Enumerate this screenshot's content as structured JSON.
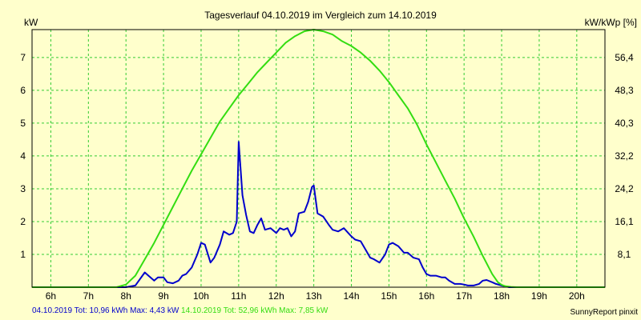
{
  "chart_data": {
    "type": "line",
    "title": "Tagesverlauf 04.10.2019 im Vergleich zum 14.10.2019",
    "ylabel_left": "kW",
    "ylabel_right": "kW/kWp [%]",
    "ylim": [
      0,
      7.85
    ],
    "xlim": [
      5.5,
      20.75
    ],
    "x_ticks": [
      6,
      7,
      8,
      9,
      10,
      11,
      12,
      13,
      14,
      15,
      16,
      17,
      18,
      19,
      20
    ],
    "x_tick_labels": [
      "6h",
      "7h",
      "8h",
      "9h",
      "10h",
      "11h",
      "12h",
      "13h",
      "14h",
      "15h",
      "16h",
      "17h",
      "18h",
      "19h",
      "20h"
    ],
    "y_ticks_left": [
      1,
      2,
      3,
      4,
      5,
      6,
      7
    ],
    "y_ticks_right": [
      1,
      2,
      3,
      4,
      5,
      6,
      7
    ],
    "y_tick_labels_right": [
      "8,1",
      "16,1",
      "24,2",
      "32,2",
      "40,3",
      "48,3",
      "56,4"
    ],
    "grid": true,
    "series": [
      {
        "name": "04.10.2019",
        "color": "#0000cc",
        "x": [
          5.5,
          6,
          7,
          7.5,
          8,
          8.25,
          8.5,
          8.6,
          8.75,
          8.85,
          9,
          9.1,
          9.25,
          9.4,
          9.5,
          9.6,
          9.75,
          9.9,
          10,
          10.1,
          10.25,
          10.35,
          10.5,
          10.6,
          10.75,
          10.85,
          10.95,
          11,
          11.1,
          11.2,
          11.3,
          11.4,
          11.5,
          11.6,
          11.7,
          11.85,
          12,
          12.1,
          12.2,
          12.3,
          12.4,
          12.5,
          12.6,
          12.75,
          12.85,
          12.95,
          13,
          13.1,
          13.25,
          13.4,
          13.5,
          13.65,
          13.8,
          14,
          14.1,
          14.25,
          14.4,
          14.5,
          14.6,
          14.75,
          14.9,
          15,
          15.1,
          15.25,
          15.4,
          15.5,
          15.65,
          15.8,
          15.9,
          16,
          16.1,
          16.25,
          16.4,
          16.5,
          16.6,
          16.75,
          16.9,
          17,
          17.1,
          17.25,
          17.4,
          17.5,
          17.6,
          17.75,
          17.85,
          18,
          18.2,
          18.5,
          19,
          20,
          20.75
        ],
        "y": [
          0,
          0,
          0,
          0,
          0,
          0.05,
          0.45,
          0.35,
          0.2,
          0.3,
          0.3,
          0.15,
          0.12,
          0.2,
          0.35,
          0.4,
          0.6,
          1.0,
          1.35,
          1.3,
          0.75,
          0.9,
          1.3,
          1.7,
          1.6,
          1.65,
          2.0,
          4.43,
          2.8,
          2.2,
          1.7,
          1.65,
          1.9,
          2.1,
          1.75,
          1.8,
          1.65,
          1.8,
          1.75,
          1.8,
          1.55,
          1.7,
          2.25,
          2.3,
          2.6,
          3.05,
          3.1,
          2.25,
          2.15,
          1.9,
          1.75,
          1.7,
          1.8,
          1.55,
          1.45,
          1.4,
          1.1,
          0.9,
          0.85,
          0.75,
          1.0,
          1.3,
          1.35,
          1.25,
          1.05,
          1.05,
          0.9,
          0.85,
          0.6,
          0.4,
          0.35,
          0.35,
          0.3,
          0.3,
          0.2,
          0.1,
          0.1,
          0.08,
          0.05,
          0.05,
          0.1,
          0.2,
          0.22,
          0.15,
          0.1,
          0.05,
          0,
          0,
          0,
          0,
          0
        ]
      },
      {
        "name": "14.10.2019",
        "color": "#33dd11",
        "x": [
          5.5,
          6,
          7,
          7.75,
          8,
          8.25,
          8.5,
          8.75,
          9,
          9.25,
          9.5,
          9.75,
          10,
          10.25,
          10.5,
          10.75,
          11,
          11.25,
          11.5,
          11.75,
          12,
          12.25,
          12.5,
          12.75,
          13,
          13.25,
          13.5,
          13.75,
          14,
          14.25,
          14.5,
          14.75,
          15,
          15.25,
          15.5,
          15.75,
          16,
          16.25,
          16.5,
          16.75,
          17,
          17.25,
          17.5,
          17.75,
          17.9,
          18,
          18.1,
          18.25,
          18.4,
          18.5,
          19,
          20,
          20.75
        ],
        "y": [
          0,
          0,
          0,
          0,
          0.08,
          0.35,
          0.85,
          1.35,
          1.9,
          2.45,
          3.0,
          3.55,
          4.05,
          4.55,
          5.05,
          5.45,
          5.85,
          6.2,
          6.55,
          6.85,
          7.15,
          7.45,
          7.65,
          7.8,
          7.85,
          7.8,
          7.7,
          7.5,
          7.35,
          7.15,
          6.9,
          6.6,
          6.25,
          5.85,
          5.45,
          4.95,
          4.35,
          3.8,
          3.25,
          2.7,
          2.1,
          1.55,
          0.95,
          0.4,
          0.15,
          0.07,
          0.03,
          0.01,
          0,
          0,
          0,
          0,
          0
        ]
      }
    ],
    "footer": {
      "s1_text": "04.10.2019 Tot: 10,96 kWh Max: 4,43 kW",
      "s2_text": "14.10.2019 Tot: 52,96 kWh Max: 7,85 kW",
      "credit": "SunnyReport pinxit"
    },
    "colors": {
      "background": "#ffffcc",
      "grid": "#33cc33",
      "axis": "#000000"
    }
  }
}
